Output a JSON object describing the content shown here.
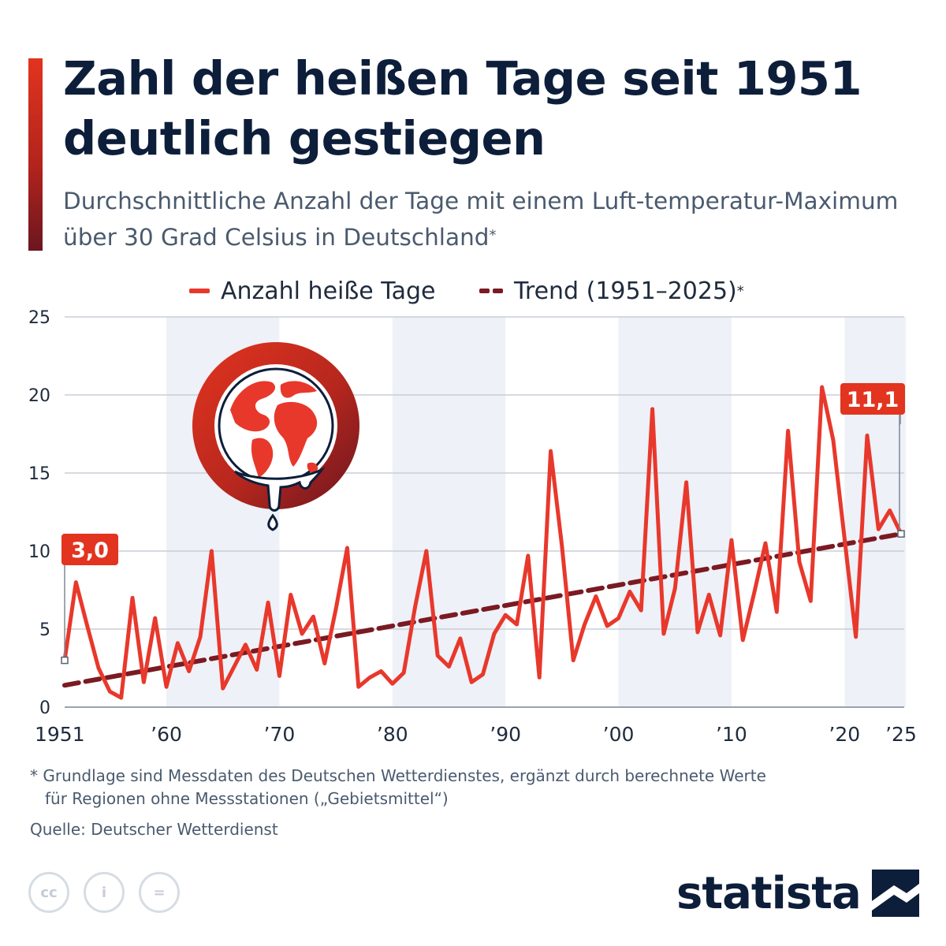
{
  "header": {
    "title": "Zahl der heißen Tage seit 1951 deutlich gestiegen",
    "subtitle": "Durchschnittliche Anzahl der Tage mit einem Luft-temperatur-Maximum über 30 Grad Celsius in Deutschland",
    "subtitle_mark": "*"
  },
  "legend": {
    "series_label": "Anzahl heiße Tage",
    "trend_label": "Trend (1951–2025)",
    "trend_mark": "*"
  },
  "colors": {
    "series": "#e8382c",
    "trend": "#7a1a22",
    "band": "#eef1f7",
    "grid": "#c9ced6",
    "callout": "#e2341f"
  },
  "icon": {
    "name": "melting-globe-icon"
  },
  "chart_data": {
    "type": "line",
    "x": [
      1951,
      1952,
      1953,
      1954,
      1955,
      1956,
      1957,
      1958,
      1959,
      1960,
      1961,
      1962,
      1963,
      1964,
      1965,
      1966,
      1967,
      1968,
      1969,
      1970,
      1971,
      1972,
      1973,
      1974,
      1975,
      1976,
      1977,
      1978,
      1979,
      1980,
      1981,
      1982,
      1983,
      1984,
      1985,
      1986,
      1987,
      1988,
      1989,
      1990,
      1991,
      1992,
      1993,
      1994,
      1995,
      1996,
      1997,
      1998,
      1999,
      2000,
      2001,
      2002,
      2003,
      2004,
      2005,
      2006,
      2007,
      2008,
      2009,
      2010,
      2011,
      2012,
      2013,
      2014,
      2015,
      2016,
      2017,
      2018,
      2019,
      2020,
      2021,
      2022,
      2023,
      2024,
      2025
    ],
    "series": [
      {
        "name": "Anzahl heiße Tage",
        "values": [
          3.0,
          8.0,
          5.2,
          2.5,
          1.0,
          0.6,
          7.0,
          1.6,
          5.7,
          1.3,
          4.1,
          2.3,
          4.5,
          10.0,
          1.2,
          2.6,
          4.0,
          2.4,
          6.7,
          2.0,
          7.2,
          4.7,
          5.8,
          2.8,
          6.3,
          10.2,
          1.3,
          1.9,
          2.3,
          1.5,
          2.2,
          6.4,
          10.0,
          3.3,
          2.6,
          4.4,
          1.6,
          2.1,
          4.7,
          5.9,
          5.3,
          9.7,
          1.9,
          16.4,
          10.3,
          3.0,
          5.3,
          7.1,
          5.2,
          5.7,
          7.4,
          6.2,
          19.1,
          4.7,
          7.6,
          14.4,
          4.8,
          7.2,
          4.6,
          10.7,
          4.3,
          7.3,
          10.5,
          6.1,
          17.7,
          9.3,
          6.8,
          20.5,
          17.1,
          10.8,
          4.5,
          17.4,
          11.4,
          12.6,
          11.1
        ]
      },
      {
        "name": "Trend (1951–2025)",
        "values": [
          1.4,
          11.1
        ],
        "x": [
          1951,
          2025
        ]
      }
    ],
    "callouts": [
      {
        "year": 1951,
        "label": "3,0"
      },
      {
        "year": 2025,
        "label": "11,1"
      }
    ],
    "x_ticks": [
      {
        "value": 1951,
        "label": "1951"
      },
      {
        "value": 1960,
        "label": "’60"
      },
      {
        "value": 1970,
        "label": "’70"
      },
      {
        "value": 1980,
        "label": "’80"
      },
      {
        "value": 1990,
        "label": "’90"
      },
      {
        "value": 2000,
        "label": "’00"
      },
      {
        "value": 2010,
        "label": "’10"
      },
      {
        "value": 2020,
        "label": "’20"
      },
      {
        "value": 2025,
        "label": "’25"
      }
    ],
    "y_ticks": [
      "0",
      "5",
      "10",
      "15",
      "20",
      "25"
    ],
    "ylim": [
      0,
      25
    ],
    "xlim": [
      1951,
      2025
    ],
    "bands": [
      [
        1960,
        1970
      ],
      [
        1980,
        1990
      ],
      [
        2000,
        2010
      ],
      [
        2020,
        2025
      ]
    ],
    "grid": true,
    "legend_position": "top-center"
  },
  "footer": {
    "footnote_mark": "*",
    "footnote_line1": "Grundlage sind Messdaten des Deutschen Wetterdienstes, ergänzt durch berechnete Werte",
    "footnote_line2": "für Regionen ohne Messstationen („Gebietsmittel“)",
    "source": "Quelle: Deutscher Wetterdienst",
    "logo_text": "statista",
    "license_icons": [
      "cc-icon",
      "by-icon",
      "nd-icon"
    ],
    "license_labels": [
      "cc",
      "i",
      "="
    ]
  }
}
